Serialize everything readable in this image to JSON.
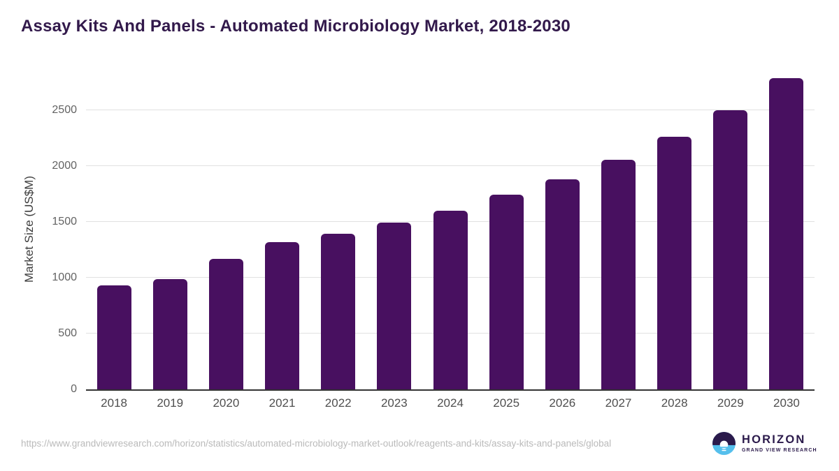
{
  "page": {
    "title": "Assay Kits And Panels - Automated Microbiology Market, 2018-2030"
  },
  "chart_data": {
    "type": "bar",
    "title": "Assay Kits And Panels - Automated Microbiology Market, 2018-2030",
    "categories": [
      "2018",
      "2019",
      "2020",
      "2021",
      "2022",
      "2023",
      "2024",
      "2025",
      "2026",
      "2027",
      "2028",
      "2029",
      "2030"
    ],
    "values": [
      930,
      985,
      1165,
      1315,
      1395,
      1495,
      1600,
      1740,
      1880,
      2055,
      2260,
      2495,
      2785
    ],
    "xlabel": "",
    "ylabel": "Market Size (US$M)",
    "ylim": [
      0,
      2860
    ],
    "y_ticks": [
      0,
      500,
      1000,
      1500,
      2000,
      2500
    ],
    "grid": true,
    "legend": false,
    "bar_color": "#481060"
  },
  "footer": {
    "source_url": "https://www.grandviewresearch.com/horizon/statistics/automated-microbiology-market-outlook/reagents-and-kits/assay-kits-and-panels/global",
    "logo": {
      "brand": "HORIZON",
      "tagline": "GRAND VIEW RESEARCH"
    }
  },
  "colors": {
    "bar": "#481060",
    "title": "#32194b",
    "axis_title": "#3d3d3d",
    "y_tick_label": "#636363",
    "x_tick_label": "#4f4f4f",
    "gridline": "#e1e1e1",
    "baseline": "#333333",
    "url_text": "#bababa",
    "logo_dark": "#2b1a4b",
    "logo_blue": "#55bfec"
  }
}
